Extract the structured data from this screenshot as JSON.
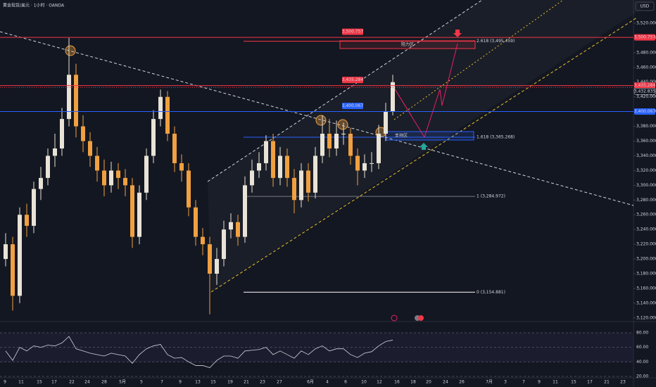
{
  "chart_data": {
    "type": "candlestick",
    "title": "黄金现货/美元 · 1小时 · OANDA",
    "currency": "USD",
    "x_labels": [
      "9",
      "11",
      "15",
      "17",
      "22",
      "24",
      "28",
      "5月",
      "5",
      "7",
      "9",
      "13",
      "15",
      "19",
      "21",
      "23",
      "27",
      "6月",
      "4",
      "6",
      "10",
      "12",
      "16",
      "18",
      "20",
      "24",
      "26",
      "7月",
      "3",
      "7",
      "9",
      "11",
      "15",
      "17",
      "21",
      "23"
    ],
    "open": [
      3200,
      3220,
      3150,
      3260,
      3245,
      3295,
      3310,
      3340,
      3350,
      3390,
      3450,
      3380,
      3360,
      3340,
      3320,
      3300,
      3320,
      3310,
      3300,
      3230,
      3290,
      3340,
      3390,
      3420,
      3370,
      3330,
      3320,
      3270,
      3230,
      3220,
      3180,
      3200,
      3240,
      3250,
      3230,
      3300,
      3320,
      3330,
      3360,
      3310,
      3340,
      3310,
      3280,
      3320,
      3290,
      3340,
      3370,
      3350,
      3370,
      3370,
      3340,
      3320,
      3330,
      3330,
      3370,
      3400
    ],
    "high": [
      3235,
      3230,
      3270,
      3275,
      3305,
      3325,
      3350,
      3370,
      3405,
      3500,
      3465,
      3395,
      3372,
      3352,
      3335,
      3332,
      3330,
      3322,
      3310,
      3300,
      3350,
      3402,
      3430,
      3428,
      3380,
      3342,
      3330,
      3280,
      3242,
      3230,
      3215,
      3252,
      3262,
      3260,
      3312,
      3335,
      3345,
      3368,
      3370,
      3352,
      3350,
      3322,
      3330,
      3330,
      3352,
      3395,
      3390,
      3388,
      3385,
      3378,
      3350,
      3342,
      3345,
      3382,
      3412,
      3450
    ],
    "low": [
      3190,
      3130,
      3140,
      3230,
      3235,
      3280,
      3300,
      3325,
      3340,
      3380,
      3365,
      3345,
      3325,
      3305,
      3285,
      3290,
      3295,
      3285,
      3215,
      3220,
      3280,
      3330,
      3380,
      3360,
      3318,
      3305,
      3258,
      3218,
      3205,
      3125,
      3165,
      3190,
      3228,
      3218,
      3222,
      3290,
      3310,
      3320,
      3298,
      3300,
      3298,
      3262,
      3270,
      3278,
      3282,
      3330,
      3338,
      3340,
      3355,
      3328,
      3300,
      3310,
      3318,
      3322,
      3360,
      3395
    ],
    "close": [
      3220,
      3150,
      3260,
      3245,
      3295,
      3310,
      3340,
      3350,
      3390,
      3450,
      3380,
      3360,
      3340,
      3320,
      3300,
      3320,
      3310,
      3300,
      3230,
      3290,
      3340,
      3390,
      3420,
      3370,
      3330,
      3320,
      3270,
      3230,
      3220,
      3180,
      3200,
      3240,
      3250,
      3230,
      3300,
      3320,
      3330,
      3360,
      3310,
      3340,
      3310,
      3280,
      3320,
      3290,
      3340,
      3370,
      3350,
      3370,
      3370,
      3340,
      3320,
      3330,
      3330,
      3370,
      3400,
      3440
    ],
    "up_color": "#e8e3d6",
    "down_color": "#f0a040",
    "ylim": [
      3116,
      3551.5
    ],
    "yticks": [
      {
        "value": 3120,
        "label": "3,120.000"
      },
      {
        "value": 3140,
        "label": "3,140.000"
      },
      {
        "value": 3160,
        "label": "3,160.000"
      },
      {
        "value": 3180,
        "label": "3,180.000"
      },
      {
        "value": 3200,
        "label": "3,200.000"
      },
      {
        "value": 3220,
        "label": "3,220.000"
      },
      {
        "value": 3240,
        "label": "3,240.000"
      },
      {
        "value": 3260,
        "label": "3,260.000"
      },
      {
        "value": 3280,
        "label": "3,280.000"
      },
      {
        "value": 3300,
        "label": "3,300.000"
      },
      {
        "value": 3320,
        "label": "3,320.000"
      },
      {
        "value": 3340,
        "label": "3,340.000"
      },
      {
        "value": 3360,
        "label": "3,360.000"
      },
      {
        "value": 3380,
        "label": "3,380.000"
      },
      {
        "value": 3400,
        "label": "3,400.000"
      },
      {
        "value": 3420,
        "label": "3,420.000"
      },
      {
        "value": 3440,
        "label": "3,440.000"
      },
      {
        "value": 3460,
        "label": "3,460.000"
      },
      {
        "value": 3480,
        "label": "3,480.000"
      },
      {
        "value": 3500,
        "label": "3,500.000"
      },
      {
        "value": 3520,
        "label": "3,520.000"
      }
    ],
    "levels": [
      {
        "value": 3500.757,
        "label": "3,500.757",
        "color": "#f23645"
      },
      {
        "value": 3435.284,
        "label": "3,435.284",
        "color": "#f23645"
      },
      {
        "value": 3400.067,
        "label": "3,400.067",
        "color": "#2962ff"
      }
    ],
    "current_price": {
      "value": 3432.835,
      "label": "3,432.835"
    },
    "fib": [
      {
        "value": 3495.459,
        "label": "2.618 (3,495.459)",
        "color": "#f23645"
      },
      {
        "value": 3365.268,
        "label": "1.618 (3,365.268)",
        "color": "#2962ff"
      },
      {
        "value": 3284.972,
        "label": "1 (3,284.972)",
        "color": "#787b86"
      },
      {
        "value": 3154.881,
        "label": "0 (3,154.881)",
        "color": "#ffffff"
      }
    ],
    "zones": [
      {
        "label": "阻力区"
      },
      {
        "label": "支持区"
      }
    ],
    "rsi": {
      "color": "#d1d4dc",
      "values": [
        55,
        42,
        60,
        55,
        62,
        60,
        63,
        62,
        66,
        75,
        58,
        55,
        52,
        50,
        48,
        52,
        50,
        48,
        38,
        50,
        58,
        62,
        64,
        50,
        45,
        46,
        40,
        35,
        35,
        32,
        42,
        48,
        48,
        45,
        55,
        56,
        57,
        60,
        50,
        55,
        50,
        45,
        55,
        50,
        58,
        62,
        55,
        58,
        58,
        50,
        46,
        52,
        54,
        62,
        68,
        70
      ],
      "ylim": [
        18,
        94.5
      ],
      "yticks": [
        {
          "value": 20,
          "label": "20.00"
        },
        {
          "value": 40,
          "label": "40.00"
        },
        {
          "value": 60,
          "label": "60.00"
        },
        {
          "value": 80,
          "label": "80.00"
        }
      ]
    }
  }
}
